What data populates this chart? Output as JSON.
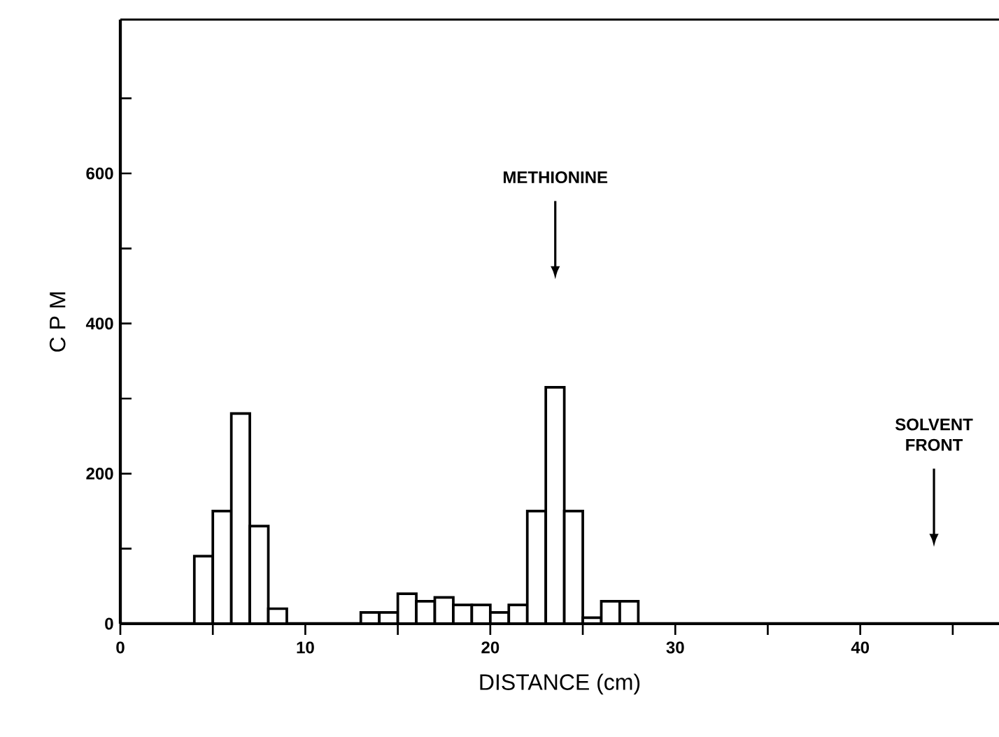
{
  "chart_data": {
    "type": "histogram",
    "xlabel": "DISTANCE (cm)",
    "ylabel": "C P M",
    "color": "#000000",
    "bins": [
      4,
      5,
      6,
      7,
      8,
      9,
      10,
      11,
      12,
      13,
      14,
      15,
      16,
      17,
      18,
      19,
      20,
      21,
      22,
      23,
      24,
      25,
      26,
      27,
      28
    ],
    "values": [
      90,
      150,
      280,
      130,
      20,
      0,
      0,
      0,
      0,
      15,
      15,
      40,
      30,
      35,
      25,
      25,
      15,
      25,
      150,
      315,
      150,
      8,
      30,
      30
    ],
    "xlim": [
      0,
      47.5
    ],
    "ylim": [
      0,
      805
    ],
    "xticks": [
      0,
      {
        "value": 5,
        "label": null
      },
      10,
      {
        "value": 15,
        "label": null
      },
      20,
      {
        "value": 25,
        "label": null
      },
      30,
      {
        "value": 35,
        "label": null
      },
      40,
      {
        "value": 45,
        "label": null
      }
    ],
    "yticks": [
      0,
      {
        "value": 100,
        "label": null
      },
      200,
      {
        "value": 300,
        "label": null
      },
      400,
      {
        "value": 500,
        "label": null
      },
      600,
      {
        "value": 700,
        "label": null
      }
    ],
    "grid": false,
    "annotations": [
      "METHIONINE",
      "SOLVENT FRONT"
    ]
  }
}
